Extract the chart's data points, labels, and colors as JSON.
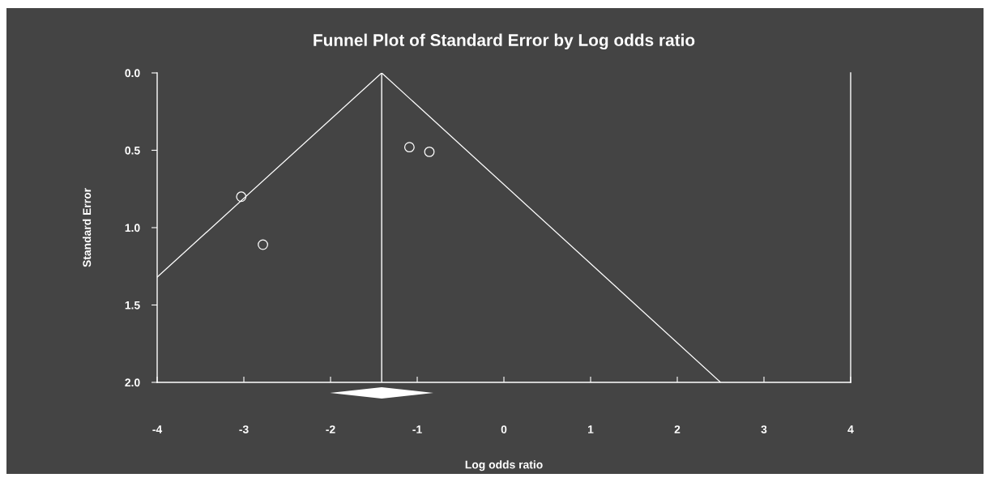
{
  "chart_data": {
    "type": "scatter",
    "title": "Funnel Plot of Standard Error by Log odds ratio",
    "xlabel": "Log odds ratio",
    "ylabel": "Standard Error",
    "xlim": [
      -4,
      4
    ],
    "xticks": [
      -4,
      -3,
      -2,
      -1,
      0,
      1,
      2,
      3,
      4
    ],
    "ylim": [
      2.0,
      0.0
    ],
    "yticks": [
      {
        "value": 0,
        "label": "0.0"
      },
      {
        "value": 0.5,
        "label": "0.5"
      },
      {
        "value": 1,
        "label": "1.0"
      },
      {
        "value": 1.5,
        "label": "1.5"
      },
      {
        "value": 2,
        "label": "2.0"
      }
    ],
    "grid": false,
    "legend": false,
    "series": [
      {
        "color": "#ffffff",
        "marker": "circle",
        "x": [
          -3.03,
          -2.78,
          -1.09,
          -0.86
        ],
        "values": [
          0.8,
          1.11,
          0.48,
          0.51
        ]
      },
      {
        "type": "line",
        "color": "#ffffff",
        "x": [
          -4,
          -1.41,
          2.5
        ],
        "values": [
          1.32,
          0,
          2.0
        ]
      }
    ],
    "ref_lines": [
      {
        "axis": "x",
        "value": -1.41,
        "color": "#ffffff"
      }
    ]
  }
}
